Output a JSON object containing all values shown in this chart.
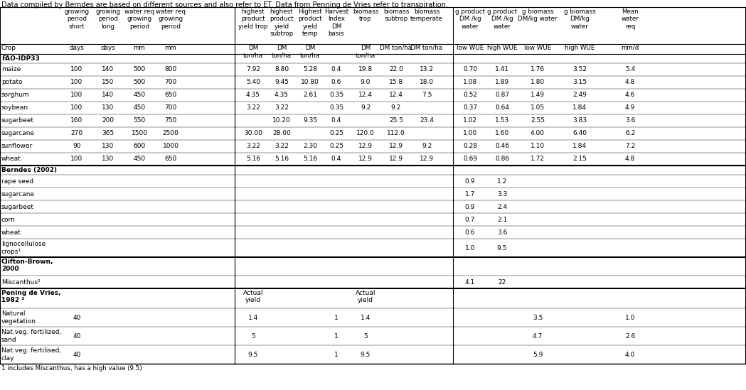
{
  "title_note": "Data compiled by Berndes are based on different sources and also refer to ET. Data from Penning de Vries refer to transpiration.",
  "footnote": "1 includes Miscanthus, has a high value (9.5)",
  "sections": [
    {
      "name": "FAO-IDP33",
      "rows": [
        {
          "crop": "maize",
          "vals": [
            "100",
            "140",
            "500",
            "800",
            "7.92",
            "8.80",
            "5.28",
            "0.4",
            "19.8",
            "22.0",
            "13.2",
            "0.70",
            "1.41",
            "1.76",
            "3.52",
            "5.4"
          ]
        },
        {
          "crop": "potato",
          "vals": [
            "100",
            "150",
            "500",
            "700",
            "5.40",
            "9.45",
            "10.80",
            "0.6",
            "9.0",
            "15.8",
            "18.0",
            "1.08",
            "1.89",
            "1.80",
            "3.15",
            "4.8"
          ]
        },
        {
          "crop": "sorghum",
          "vals": [
            "100",
            "140",
            "450",
            "650",
            "4.35",
            "4.35",
            "2.61",
            "0.35",
            "12.4",
            "12.4",
            "7.5",
            "0.52",
            "0.87",
            "1.49",
            "2.49",
            "4.6"
          ]
        },
        {
          "crop": "soybean",
          "vals": [
            "100",
            "130",
            "450",
            "700",
            "3.22",
            "3.22",
            "",
            "0.35",
            "9.2",
            "9.2",
            "",
            "0.37",
            "0.64",
            "1.05",
            "1.84",
            "4.9"
          ]
        },
        {
          "crop": "sugarbeet",
          "vals": [
            "160",
            "200",
            "550",
            "750",
            "",
            "10.20",
            "9.35",
            "0.4",
            "",
            "25.5",
            "23.4",
            "1.02",
            "1.53",
            "2.55",
            "3.83",
            "3.6"
          ]
        },
        {
          "crop": "sugarcane",
          "vals": [
            "270",
            "365",
            "1500",
            "2500",
            "30.00",
            "28.00",
            "",
            "0.25",
            "120.0",
            "112.0",
            "",
            "1.00",
            "1.60",
            "4.00",
            "6.40",
            "6.2"
          ]
        },
        {
          "crop": "sunflower",
          "vals": [
            "90",
            "130",
            "600",
            "1000",
            "3.22",
            "3.22",
            "2.30",
            "0.25",
            "12.9",
            "12.9",
            "9.2",
            "0.28",
            "0.46",
            "1.10",
            "1.84",
            "7.2"
          ]
        },
        {
          "crop": "wheat",
          "vals": [
            "100",
            "130",
            "450",
            "650",
            "5.16",
            "5.16",
            "5.16",
            "0.4",
            "12.9",
            "12.9",
            "12.9",
            "0.69",
            "0.86",
            "1.72",
            "2.15",
            "4.8"
          ]
        }
      ]
    },
    {
      "name": "Berndes (2002)",
      "rows": [
        {
          "crop": "rape seed",
          "vals": [
            "",
            "",
            "",
            "",
            "",
            "",
            "",
            "",
            "",
            "",
            "",
            "0.9",
            "1.2",
            "",
            "",
            ""
          ]
        },
        {
          "crop": "sugarcane",
          "vals": [
            "",
            "",
            "",
            "",
            "",
            "",
            "",
            "",
            "",
            "",
            "",
            "1.7",
            "3.3",
            "",
            "",
            ""
          ]
        },
        {
          "crop": "sugarbeet",
          "vals": [
            "",
            "",
            "",
            "",
            "",
            "",
            "",
            "",
            "",
            "",
            "",
            "0.9",
            "2.4",
            "",
            "",
            ""
          ]
        },
        {
          "crop": "corn",
          "vals": [
            "",
            "",
            "",
            "",
            "",
            "",
            "",
            "",
            "",
            "",
            "",
            "0.7",
            "2.1",
            "",
            "",
            ""
          ]
        },
        {
          "crop": "wheat",
          "vals": [
            "",
            "",
            "",
            "",
            "",
            "",
            "",
            "",
            "",
            "",
            "",
            "0.6",
            "3.6",
            "",
            "",
            ""
          ]
        },
        {
          "crop": "lignocellulose\ncrops¹",
          "vals": [
            "",
            "",
            "",
            "",
            "",
            "",
            "",
            "",
            "",
            "",
            "",
            "1.0",
            "9.5",
            "",
            "",
            ""
          ]
        }
      ]
    },
    {
      "name": "Clifton-Brown,\n2000",
      "rows": [
        {
          "crop": "Miscanthus²",
          "vals": [
            "",
            "",
            "",
            "",
            "",
            "",
            "",
            "",
            "",
            "",
            "",
            "4.1",
            "22",
            "",
            "",
            ""
          ]
        }
      ]
    },
    {
      "name": "Pening de Vries,\n1982 ²",
      "has_actual_yield": true,
      "rows": [
        {
          "crop": "Natural\nvegetation",
          "vals": [
            "40",
            "",
            "",
            "",
            "1.4",
            "",
            "",
            "1",
            "1.4",
            "",
            "",
            "",
            "",
            "3.5",
            "",
            "1.0"
          ]
        },
        {
          "crop": "Nat.veg. fertilized,\nsand",
          "vals": [
            "40",
            "",
            "",
            "",
            "5",
            "",
            "",
            "1",
            "5",
            "",
            "",
            "",
            "",
            "4.7",
            "",
            "2.6"
          ]
        },
        {
          "crop": "Nat.veg. fertilised,\nclay",
          "vals": [
            "40",
            "",
            "",
            "",
            "9.5",
            "",
            "",
            "1",
            "9.5",
            "",
            "",
            "",
            "",
            "5.9",
            "",
            "4.0"
          ]
        }
      ]
    }
  ]
}
